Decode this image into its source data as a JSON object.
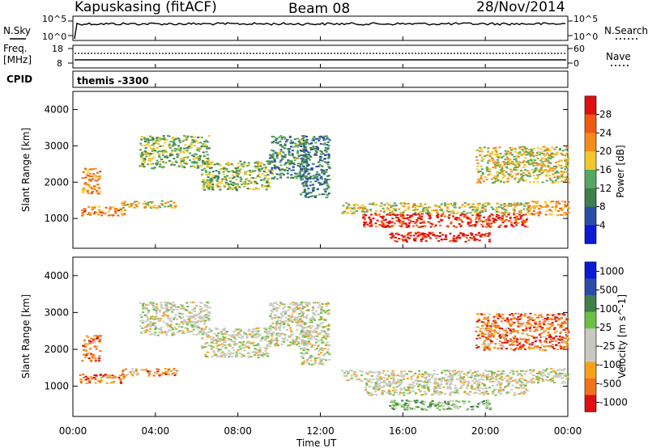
{
  "header": {
    "station": "Kapuskasing (fitACF)",
    "beam": "Beam 08",
    "date": "28/Nov/2014"
  },
  "noise_panel": {
    "left_label": "N.Sky",
    "right_label": "N.Search",
    "tick_top": "10^5",
    "tick_bottom": "10^0"
  },
  "freq_panel": {
    "left_label_1": "Freq.",
    "left_label_2": "[MHz]",
    "right_label": "Nave",
    "left_ticks": [
      "18",
      "8"
    ],
    "right_ticks": [
      "60",
      "0"
    ]
  },
  "cpid_panel": {
    "label": "CPID",
    "value": "themis -3300"
  },
  "colors": {
    "power": [
      "#0a1bd6",
      "#2a4ea8",
      "#3f7f4a",
      "#55a860",
      "#f0c82a",
      "#f58b1a",
      "#ef5a10",
      "#e01010"
    ],
    "velocity": [
      "#e01010",
      "#f0731a",
      "#f5a21a",
      "#c8c8c0",
      "#c8c8c0",
      "#6cc043",
      "#3f7f4a",
      "#2a4ea8",
      "#0a1bd6"
    ]
  },
  "chart_data": [
    {
      "type": "heatmap",
      "title": "",
      "xlabel": "Time UT",
      "ylabel": "Slant Range [km]",
      "x_ticks": [
        "00:00",
        "04:00",
        "08:00",
        "12:00",
        "16:00",
        "20:00",
        "00:00"
      ],
      "y_ticks": [
        1000,
        2000,
        3000,
        4000
      ],
      "xlim_hours": [
        0,
        24
      ],
      "ylim_km": [
        180,
        4500
      ],
      "colorbar": {
        "label": "Power [dB]",
        "ticks": [
          "4",
          "8",
          "12",
          "16",
          "20",
          "24",
          "28"
        ],
        "range": [
          0,
          30
        ]
      },
      "scatter_regions": [
        {
          "t0": 0.3,
          "t1": 2.5,
          "r0": 1100,
          "r1": 1350,
          "level": 0.75
        },
        {
          "t0": 0.4,
          "t1": 1.3,
          "r0": 1700,
          "r1": 2400,
          "level": 0.7
        },
        {
          "t0": 2.3,
          "t1": 5.0,
          "r0": 1300,
          "r1": 1500,
          "level": 0.6
        },
        {
          "t0": 3.2,
          "t1": 6.6,
          "r0": 2400,
          "r1": 3300,
          "level": 0.45
        },
        {
          "t0": 6.2,
          "t1": 9.5,
          "r0": 1800,
          "r1": 2600,
          "level": 0.45
        },
        {
          "t0": 9.5,
          "t1": 11.3,
          "r0": 2100,
          "r1": 3300,
          "level": 0.35
        },
        {
          "t0": 11.0,
          "t1": 12.4,
          "r0": 1600,
          "r1": 3300,
          "level": 0.3
        },
        {
          "t0": 13.0,
          "t1": 22.0,
          "r0": 1150,
          "r1": 1450,
          "level": 0.55
        },
        {
          "t0": 14.0,
          "t1": 22.0,
          "r0": 780,
          "r1": 1150,
          "level": 0.9
        },
        {
          "t0": 15.3,
          "t1": 20.2,
          "r0": 380,
          "r1": 640,
          "level": 0.97
        },
        {
          "t0": 19.5,
          "t1": 24.0,
          "r0": 2000,
          "r1": 3000,
          "level": 0.55
        },
        {
          "t0": 22.0,
          "t1": 24.0,
          "r0": 1100,
          "r1": 1500,
          "level": 0.7
        }
      ]
    },
    {
      "type": "heatmap",
      "title": "",
      "xlabel": "Time UT",
      "ylabel": "Slant Range [km]",
      "x_ticks": [
        "00:00",
        "04:00",
        "08:00",
        "12:00",
        "16:00",
        "20:00",
        "00:00"
      ],
      "y_ticks": [
        1000,
        2000,
        3000,
        4000
      ],
      "xlim_hours": [
        0,
        24
      ],
      "ylim_km": [
        180,
        4500
      ],
      "colorbar": {
        "label": "Velocity [m s^-1]",
        "ticks": [
          "1000",
          "500",
          "100",
          "25",
          "-25",
          "-100",
          "-500",
          "-1000"
        ],
        "range": [
          -1200,
          1200
        ]
      },
      "scatter_regions": [
        {
          "t0": 0.3,
          "t1": 2.5,
          "r0": 1100,
          "r1": 1350,
          "level": 0.15
        },
        {
          "t0": 0.4,
          "t1": 1.3,
          "r0": 1700,
          "r1": 2400,
          "level": 0.2
        },
        {
          "t0": 2.3,
          "t1": 5.0,
          "r0": 1300,
          "r1": 1500,
          "level": 0.25
        },
        {
          "t0": 3.2,
          "t1": 6.6,
          "r0": 2400,
          "r1": 3300,
          "level": 0.45
        },
        {
          "t0": 6.2,
          "t1": 9.5,
          "r0": 1800,
          "r1": 2600,
          "level": 0.45
        },
        {
          "t0": 9.5,
          "t1": 11.3,
          "r0": 2100,
          "r1": 3300,
          "level": 0.45
        },
        {
          "t0": 11.0,
          "t1": 12.4,
          "r0": 1600,
          "r1": 3300,
          "level": 0.45
        },
        {
          "t0": 13.0,
          "t1": 22.0,
          "r0": 1150,
          "r1": 1450,
          "level": 0.45
        },
        {
          "t0": 14.0,
          "t1": 22.0,
          "r0": 780,
          "r1": 1150,
          "level": 0.45
        },
        {
          "t0": 15.3,
          "t1": 20.2,
          "r0": 380,
          "r1": 640,
          "level": 0.6
        },
        {
          "t0": 19.5,
          "t1": 24.0,
          "r0": 2000,
          "r1": 3000,
          "level": 0.2
        },
        {
          "t0": 22.0,
          "t1": 24.0,
          "r0": 1100,
          "r1": 1500,
          "level": 0.45
        }
      ]
    }
  ]
}
